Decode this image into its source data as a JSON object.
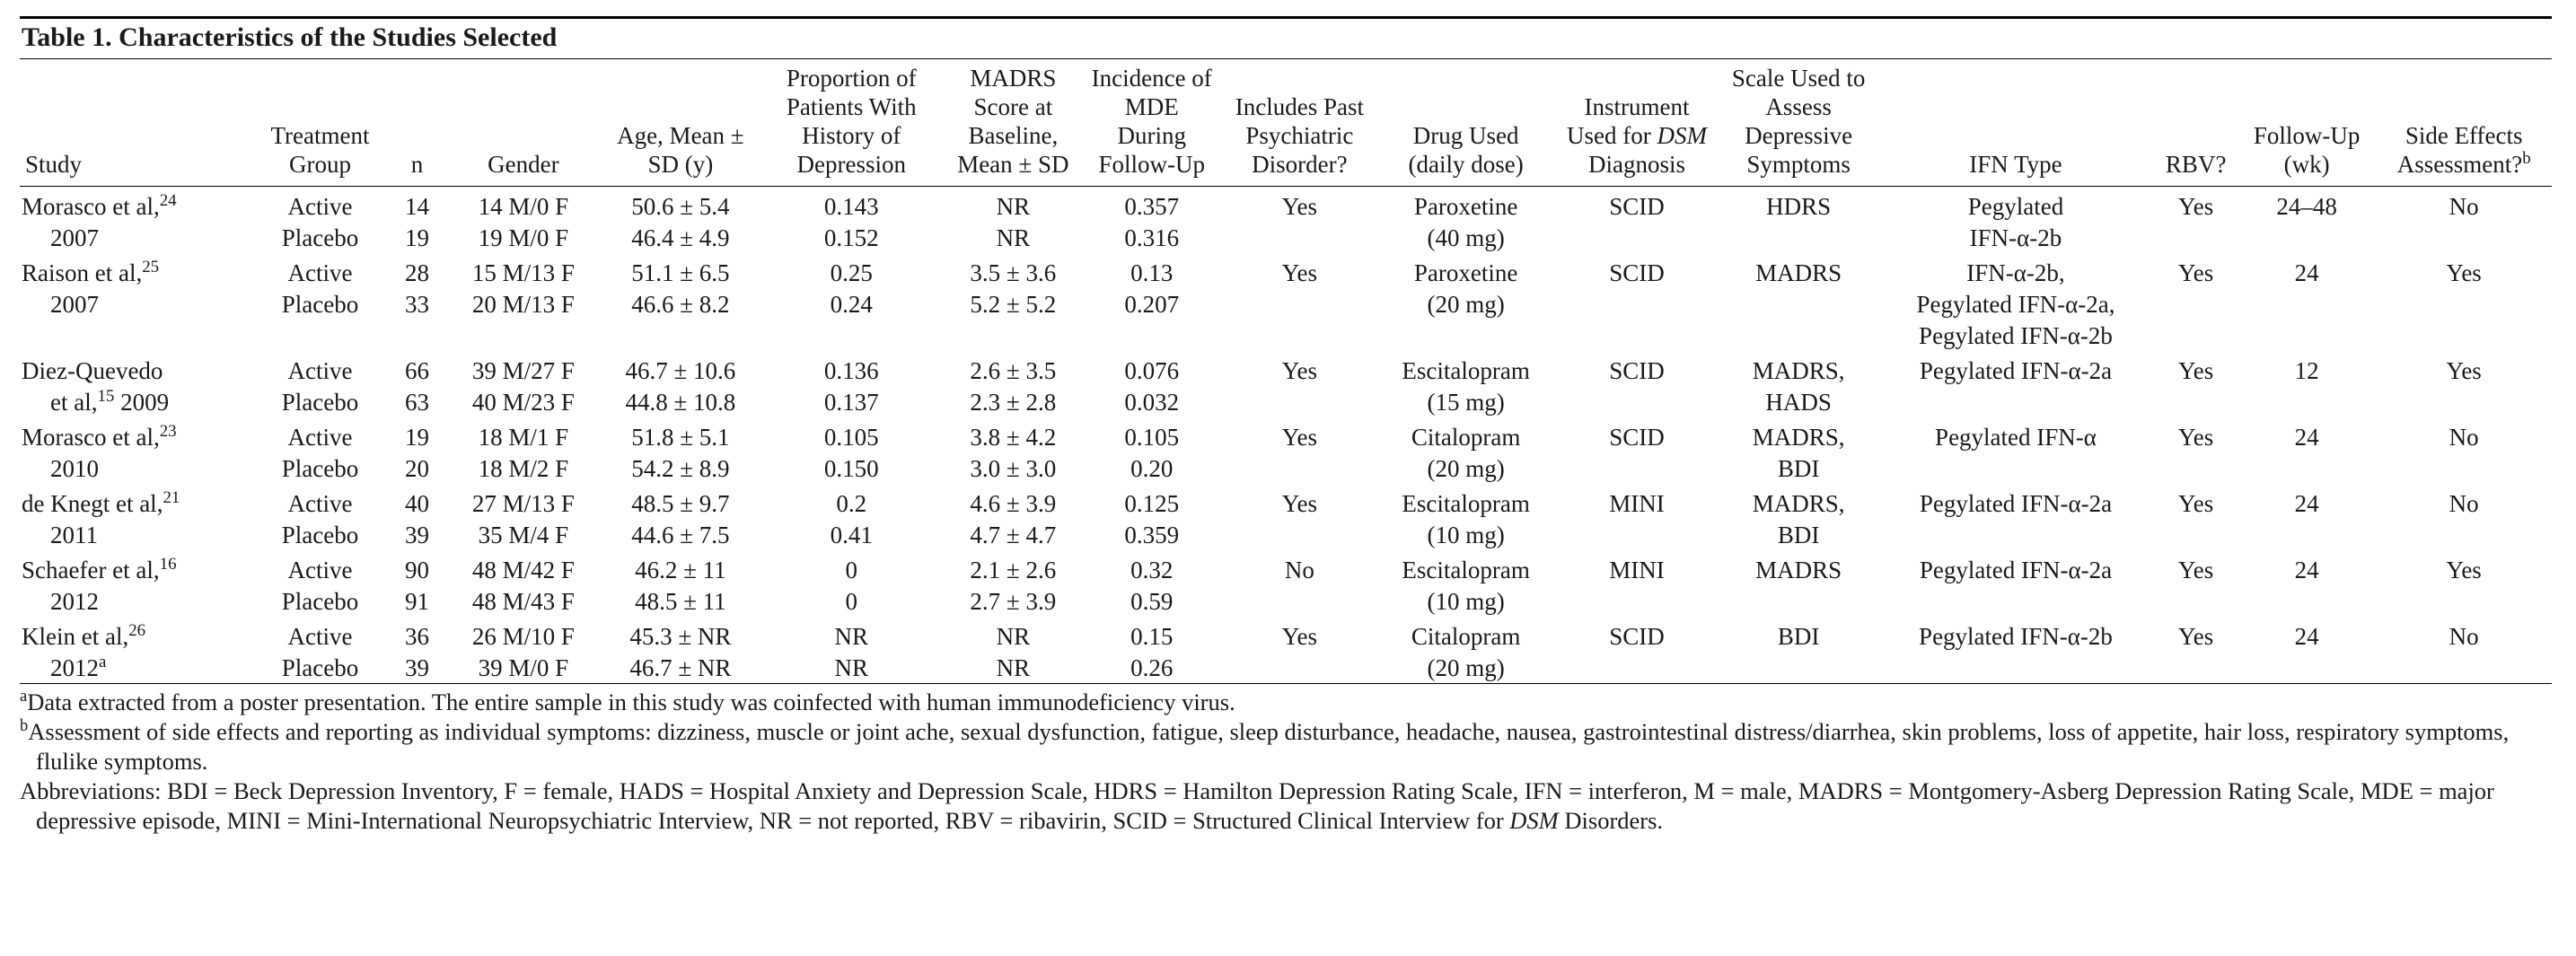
{
  "title": "Table 1. Characteristics of the Studies Selected",
  "columns": {
    "c0": "Study",
    "c1": "Treatment Group",
    "c2": "n",
    "c3": "Gender",
    "c4": "Age, Mean ± SD (y)",
    "c5": "Proportion of Patients With History of Depression",
    "c6": "MADRS Score at Baseline, Mean ± SD",
    "c7": "Incidence of MDE During Follow-Up",
    "c8": "Includes Past Psychiatric Disorder?",
    "c9": "Drug Used (daily dose)",
    "c10_a": "Instrument Used for ",
    "c10_b": "DSM",
    "c10_c": " Diagnosis",
    "c11": "Scale Used to Assess Depressive Symptoms",
    "c12": "IFN Type",
    "c13": "RBV?",
    "c14": "Follow-Up (wk)",
    "c15_a": "Side Effects Assessment?",
    "c15_b": "b"
  },
  "col_widths": {
    "c0": 250,
    "c1": 150,
    "c2": 60,
    "c3": 170,
    "c4": 170,
    "c5": 200,
    "c6": 150,
    "c7": 150,
    "c8": 170,
    "c9": 190,
    "c10": 180,
    "c11": 170,
    "c12": 300,
    "c13": 90,
    "c14": 150,
    "c15": 190
  },
  "studies": [
    {
      "ref_a": "Morasco et al,",
      "ref_sup": "24",
      "ref_b": "2007",
      "rows": [
        {
          "group": "Active",
          "n": "14",
          "gender": "14 M/0 F",
          "age": "50.6 ± 5.4",
          "hist": "0.143",
          "madrs": "NR",
          "mde": "0.357"
        },
        {
          "group": "Placebo",
          "n": "19",
          "gender": "19 M/0 F",
          "age": "46.4 ± 4.9",
          "hist": "0.152",
          "madrs": "NR",
          "mde": "0.316"
        }
      ],
      "past": "Yes",
      "drug_a": "Paroxetine",
      "drug_b": "(40 mg)",
      "dsm": "SCID",
      "scale_a": "HDRS",
      "scale_b": "",
      "ifn_a": "Pegylated",
      "ifn_b": "IFN-α-2b",
      "ifn_c": "",
      "rbv": "Yes",
      "fu": "24–48",
      "se": "No"
    },
    {
      "ref_a": "Raison et al,",
      "ref_sup": "25",
      "ref_b": "2007",
      "rows": [
        {
          "group": "Active",
          "n": "28",
          "gender": "15 M/13 F",
          "age": "51.1 ± 6.5",
          "hist": "0.25",
          "madrs": "3.5 ± 3.6",
          "mde": "0.13"
        },
        {
          "group": "Placebo",
          "n": "33",
          "gender": "20 M/13 F",
          "age": "46.6 ± 8.2",
          "hist": "0.24",
          "madrs": "5.2 ± 5.2",
          "mde": "0.207"
        }
      ],
      "past": "Yes",
      "drug_a": "Paroxetine",
      "drug_b": "(20 mg)",
      "dsm": "SCID",
      "scale_a": "MADRS",
      "scale_b": "",
      "ifn_a": "IFN-α-2b,",
      "ifn_b": "Pegylated IFN-α-2a,",
      "ifn_c": "Pegylated IFN-α-2b",
      "rbv": "Yes",
      "fu": "24",
      "se": "Yes"
    },
    {
      "ref_a": "Diez-Quevedo",
      "ref_sup": "",
      "ref_b_pre": "et al,",
      "ref_b_sup": "15",
      "ref_b_post": " 2009",
      "rows": [
        {
          "group": "Active",
          "n": "66",
          "gender": "39 M/27 F",
          "age": "46.7 ± 10.6",
          "hist": "0.136",
          "madrs": "2.6 ± 3.5",
          "mde": "0.076"
        },
        {
          "group": "Placebo",
          "n": "63",
          "gender": "40 M/23 F",
          "age": "44.8 ± 10.8",
          "hist": "0.137",
          "madrs": "2.3 ± 2.8",
          "mde": "0.032"
        }
      ],
      "past": "Yes",
      "drug_a": "Escitalopram",
      "drug_b": "(15 mg)",
      "dsm": "SCID",
      "scale_a": "MADRS,",
      "scale_b": "HADS",
      "ifn_a": "Pegylated IFN-α-2a",
      "ifn_b": "",
      "ifn_c": "",
      "rbv": "Yes",
      "fu": "12",
      "se": "Yes"
    },
    {
      "ref_a": "Morasco et al,",
      "ref_sup": "23",
      "ref_b": "2010",
      "rows": [
        {
          "group": "Active",
          "n": "19",
          "gender": "18 M/1 F",
          "age": "51.8 ± 5.1",
          "hist": "0.105",
          "madrs": "3.8 ± 4.2",
          "mde": "0.105"
        },
        {
          "group": "Placebo",
          "n": "20",
          "gender": "18 M/2 F",
          "age": "54.2 ± 8.9",
          "hist": "0.150",
          "madrs": "3.0 ± 3.0",
          "mde": "0.20"
        }
      ],
      "past": "Yes",
      "drug_a": "Citalopram",
      "drug_b": "(20 mg)",
      "dsm": "SCID",
      "scale_a": "MADRS,",
      "scale_b": "BDI",
      "ifn_a": "Pegylated IFN-α",
      "ifn_b": "",
      "ifn_c": "",
      "rbv": "Yes",
      "fu": "24",
      "se": "No"
    },
    {
      "ref_a": "de Knegt et al,",
      "ref_sup": "21",
      "ref_b": "2011",
      "rows": [
        {
          "group": "Active",
          "n": "40",
          "gender": "27 M/13 F",
          "age": "48.5 ± 9.7",
          "hist": "0.2",
          "madrs": "4.6 ± 3.9",
          "mde": "0.125"
        },
        {
          "group": "Placebo",
          "n": "39",
          "gender": "35 M/4 F",
          "age": "44.6 ± 7.5",
          "hist": "0.41",
          "madrs": "4.7 ± 4.7",
          "mde": "0.359"
        }
      ],
      "past": "Yes",
      "drug_a": "Escitalopram",
      "drug_b": "(10 mg)",
      "dsm": "MINI",
      "scale_a": "MADRS,",
      "scale_b": "BDI",
      "ifn_a": "Pegylated IFN-α-2a",
      "ifn_b": "",
      "ifn_c": "",
      "rbv": "Yes",
      "fu": "24",
      "se": "No"
    },
    {
      "ref_a": "Schaefer et al,",
      "ref_sup": "16",
      "ref_b": "2012",
      "rows": [
        {
          "group": "Active",
          "n": "90",
          "gender": "48 M/42 F",
          "age": "46.2 ± 11",
          "hist": "0",
          "madrs": "2.1 ± 2.6",
          "mde": "0.32"
        },
        {
          "group": "Placebo",
          "n": "91",
          "gender": "48 M/43 F",
          "age": "48.5 ± 11",
          "hist": "0",
          "madrs": "2.7 ± 3.9",
          "mde": "0.59"
        }
      ],
      "past": "No",
      "drug_a": "Escitalopram",
      "drug_b": "(10 mg)",
      "dsm": "MINI",
      "scale_a": "MADRS",
      "scale_b": "",
      "ifn_a": "Pegylated IFN-α-2a",
      "ifn_b": "",
      "ifn_c": "",
      "rbv": "Yes",
      "fu": "24",
      "se": "Yes"
    },
    {
      "ref_a": "Klein et al,",
      "ref_sup": "26",
      "ref_b_pre": "2012",
      "ref_b_sup": "a",
      "ref_b_post": "",
      "rows": [
        {
          "group": "Active",
          "n": "36",
          "gender": "26 M/10 F",
          "age": "45.3 ± NR",
          "hist": "NR",
          "madrs": "NR",
          "mde": "0.15"
        },
        {
          "group": "Placebo",
          "n": "39",
          "gender": "39 M/0 F",
          "age": "46.7 ± NR",
          "hist": "NR",
          "madrs": "NR",
          "mde": "0.26"
        }
      ],
      "past": "Yes",
      "drug_a": "Citalopram",
      "drug_b": "(20 mg)",
      "dsm": "SCID",
      "scale_a": "BDI",
      "scale_b": "",
      "ifn_a": "Pegylated IFN-α-2b",
      "ifn_b": "",
      "ifn_c": "",
      "rbv": "Yes",
      "fu": "24",
      "se": "No"
    }
  ],
  "footnotes": {
    "a_sup": "a",
    "a": "Data extracted from a poster presentation. The entire sample in this study was coinfected with human immunodeficiency virus.",
    "b_sup": "b",
    "b": "Assessment of side effects and reporting as individual symptoms: dizziness, muscle or joint ache, sexual dysfunction, fatigue, sleep disturbance, headache, nausea, gastrointestinal distress/diarrhea, skin problems, loss of appetite, hair loss, respiratory symptoms, flulike symptoms.",
    "abbr_label": "Abbreviations: ",
    "abbr_1": "BDI = Beck Depression Inventory, F = female, HADS = Hospital Anxiety and Depression Scale, HDRS = Hamilton Depression Rating Scale, IFN = interferon, M = male, MADRS = Montgomery-Asberg Depression Rating Scale, MDE = major depressive episode, MINI = Mini-International Neuropsychiatric Interview, NR = not reported, RBV = ribavirin, SCID = Structured Clinical Interview for ",
    "abbr_ital": "DSM",
    "abbr_2": " Disorders."
  }
}
